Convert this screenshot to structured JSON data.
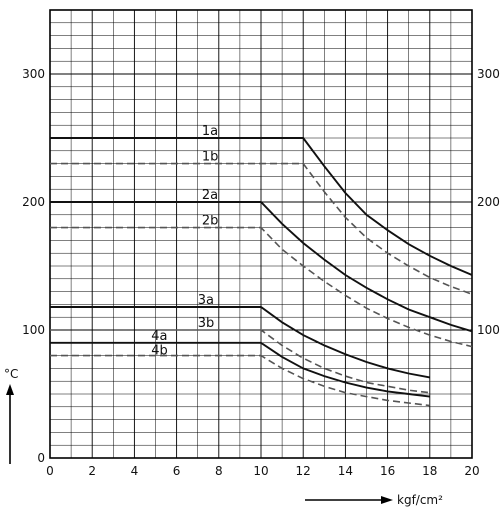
{
  "chart_data": {
    "type": "line",
    "title": "",
    "xlabel": "kgf/cm²",
    "ylabel": "°C",
    "xlim": [
      0,
      20
    ],
    "ylim": [
      0,
      350
    ],
    "x_ticks": [
      "0",
      "2",
      "4",
      "6",
      "8",
      "10",
      "12",
      "14",
      "16",
      "18",
      "20"
    ],
    "y_ticks_left": [
      "0",
      "100",
      "200",
      "300"
    ],
    "y_ticks_right": [
      "100",
      "200",
      "300"
    ],
    "grid": true,
    "series": [
      {
        "name": "1a",
        "style": "solid",
        "points": [
          [
            0,
            250
          ],
          [
            12,
            250
          ],
          [
            13,
            228
          ],
          [
            14,
            207
          ],
          [
            15,
            190
          ],
          [
            16,
            178
          ],
          [
            17,
            167
          ],
          [
            18,
            158
          ],
          [
            19,
            150
          ],
          [
            20,
            143
          ]
        ]
      },
      {
        "name": "1b",
        "style": "dashed",
        "points": [
          [
            0,
            230
          ],
          [
            12,
            230
          ],
          [
            13,
            208
          ],
          [
            14,
            188
          ],
          [
            15,
            172
          ],
          [
            16,
            160
          ],
          [
            17,
            150
          ],
          [
            18,
            141
          ],
          [
            19,
            134
          ],
          [
            20,
            128
          ]
        ]
      },
      {
        "name": "2a",
        "style": "solid",
        "points": [
          [
            0,
            200
          ],
          [
            10,
            200
          ],
          [
            11,
            183
          ],
          [
            12,
            168
          ],
          [
            13,
            155
          ],
          [
            14,
            143
          ],
          [
            15,
            133
          ],
          [
            16,
            124
          ],
          [
            17,
            116
          ],
          [
            18,
            110
          ],
          [
            19,
            104
          ],
          [
            20,
            99
          ]
        ]
      },
      {
        "name": "2b",
        "style": "dashed",
        "points": [
          [
            0,
            180
          ],
          [
            10,
            180
          ],
          [
            11,
            163
          ],
          [
            12,
            150
          ],
          [
            13,
            138
          ],
          [
            14,
            127
          ],
          [
            15,
            117
          ],
          [
            16,
            109
          ],
          [
            17,
            102
          ],
          [
            18,
            96
          ],
          [
            19,
            91
          ],
          [
            20,
            87
          ]
        ]
      },
      {
        "name": "3a",
        "style": "solid",
        "points": [
          [
            0,
            118
          ],
          [
            10,
            118
          ],
          [
            11,
            106
          ],
          [
            12,
            96
          ],
          [
            13,
            88
          ],
          [
            14,
            81
          ],
          [
            15,
            75
          ],
          [
            16,
            70
          ],
          [
            17,
            66
          ],
          [
            18,
            63
          ]
        ]
      },
      {
        "name": "3b",
        "style": "dashed",
        "points": [
          [
            0,
            100
          ],
          [
            10,
            100
          ],
          [
            11,
            88
          ],
          [
            12,
            78
          ],
          [
            13,
            70
          ],
          [
            14,
            64
          ],
          [
            15,
            59
          ],
          [
            16,
            56
          ],
          [
            17,
            53
          ],
          [
            18,
            51
          ]
        ]
      },
      {
        "name": "4a",
        "style": "solid",
        "points": [
          [
            0,
            90
          ],
          [
            10,
            90
          ],
          [
            11,
            79
          ],
          [
            12,
            70
          ],
          [
            13,
            64
          ],
          [
            14,
            59
          ],
          [
            15,
            55
          ],
          [
            16,
            52
          ],
          [
            17,
            50
          ],
          [
            18,
            48
          ]
        ]
      },
      {
        "name": "4b",
        "style": "dashed",
        "points": [
          [
            0,
            80
          ],
          [
            10,
            80
          ],
          [
            11,
            70
          ],
          [
            12,
            62
          ],
          [
            13,
            56
          ],
          [
            14,
            51
          ],
          [
            15,
            48
          ],
          [
            16,
            45
          ],
          [
            17,
            43
          ],
          [
            18,
            41
          ]
        ]
      }
    ]
  }
}
